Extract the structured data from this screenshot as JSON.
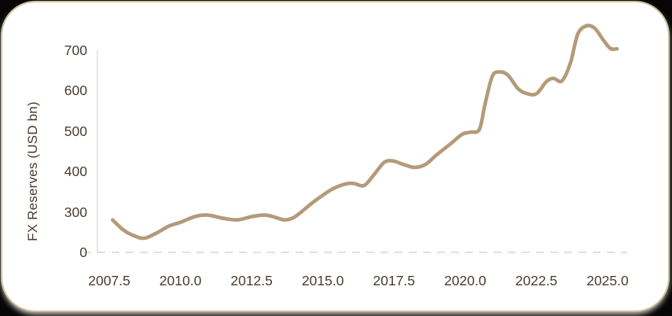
{
  "chart_data": {
    "type": "line",
    "title": "",
    "xlabel": "",
    "ylabel": "FX Reserves (USD bn)",
    "legend": "none",
    "grid": "none (dashed baseline at 0 only)",
    "x_ticks": [
      "2007.5",
      "2010.0",
      "2012.5",
      "2015.0",
      "2017.5",
      "2020.0",
      "2022.5",
      "2025.0"
    ],
    "y_ticks": [
      "0",
      "300",
      "400",
      "500",
      "600",
      "700"
    ],
    "y_axis_note": "tick labels evenly spaced; 0 baseline drawn one step below 300",
    "series": [
      {
        "name": "FX Reserves",
        "points": [
          [
            2007.62,
            283
          ],
          [
            2008.0,
            258
          ],
          [
            2008.4,
            243
          ],
          [
            2008.75,
            238
          ],
          [
            2009.2,
            252
          ],
          [
            2009.6,
            268
          ],
          [
            2010.0,
            277
          ],
          [
            2010.5,
            291
          ],
          [
            2010.95,
            295
          ],
          [
            2011.5,
            287
          ],
          [
            2012.0,
            283
          ],
          [
            2012.5,
            291
          ],
          [
            2012.95,
            295
          ],
          [
            2013.3,
            290
          ],
          [
            2013.65,
            283
          ],
          [
            2013.95,
            288
          ],
          [
            2014.25,
            303
          ],
          [
            2014.7,
            329
          ],
          [
            2015.3,
            358
          ],
          [
            2015.8,
            372
          ],
          [
            2016.1,
            373
          ],
          [
            2016.45,
            368
          ],
          [
            2016.8,
            395
          ],
          [
            2017.15,
            425
          ],
          [
            2017.45,
            429
          ],
          [
            2017.8,
            421
          ],
          [
            2018.2,
            413
          ],
          [
            2018.6,
            420
          ],
          [
            2019.0,
            444
          ],
          [
            2019.5,
            472
          ],
          [
            2019.9,
            495
          ],
          [
            2020.2,
            500
          ],
          [
            2020.5,
            507
          ],
          [
            2020.7,
            570
          ],
          [
            2020.95,
            638
          ],
          [
            2021.2,
            649
          ],
          [
            2021.5,
            641
          ],
          [
            2021.85,
            608
          ],
          [
            2022.15,
            596
          ],
          [
            2022.5,
            595
          ],
          [
            2022.85,
            625
          ],
          [
            2023.1,
            633
          ],
          [
            2023.4,
            627
          ],
          [
            2023.7,
            672
          ],
          [
            2023.95,
            742
          ],
          [
            2024.25,
            763
          ],
          [
            2024.55,
            757
          ],
          [
            2024.85,
            728
          ],
          [
            2025.1,
            707
          ],
          [
            2025.33,
            706
          ]
        ]
      }
    ]
  },
  "colors": {
    "line": "#b39a79",
    "tick_text": "#4a3c30",
    "axis_line": "#e4e2dc",
    "dash_line": "#dad5cd",
    "card_border": "#cfbf9f",
    "card_bg": "#ffffff"
  }
}
